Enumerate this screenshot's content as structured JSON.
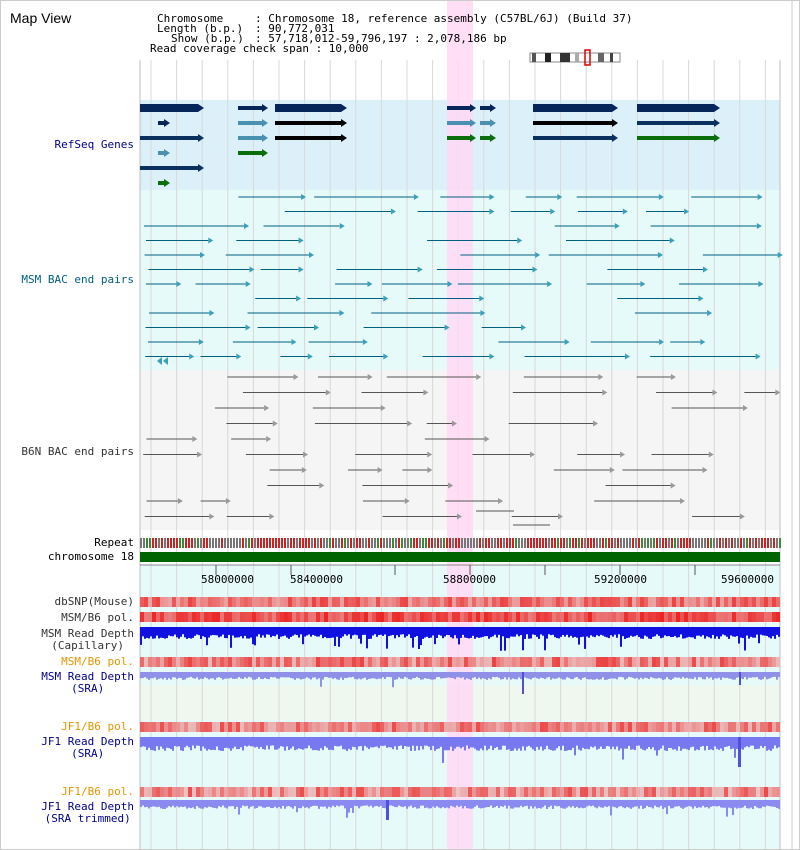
{
  "title": "Map View",
  "info": {
    "chromosome_key": "Chromosome",
    "chromosome_val": ": Chromosome 18, reference assembly (C57BL/6J) (Build 37)",
    "length_key": "Length (b.p.)",
    "length_val": ": 90,772,031",
    "show_key": "Show (b.p.)",
    "show_val": ": 57,718,012-59,796,197 : 2,078,186 bp",
    "read_coverage": "Read coverage check span : 10,000"
  },
  "tracks": {
    "refseq": "RefSeq Genes",
    "msm_bac": "MSM BAC end pairs",
    "b6n_bac": "B6N BAC end pairs",
    "repeat": "Repeat",
    "chromosome": "chromosome 18",
    "dbsnp": "dbSNP(Mouse)",
    "msm_b6_pol_1": "MSM/B6 pol.",
    "msm_read_depth_cap_1": "MSM Read Depth",
    "msm_read_depth_cap_2": "(Capillary)",
    "msm_b6_pol_2": "MSM/B6 pol.",
    "msm_read_depth_sra_1": "MSM Read Depth",
    "msm_read_depth_sra_2": "(SRA)",
    "jf1_b6_pol_1": "JF1/B6 pol.",
    "jf1_read_depth_sra_1": "JF1 Read Depth",
    "jf1_read_depth_sra_2": "(SRA)",
    "jf1_b6_pol_2": "JF1/B6 pol.",
    "jf1_read_depth_trim_1": "JF1 Read Depth",
    "jf1_read_depth_trim_2": "(SRA trimmed)"
  },
  "axis_ticks": [
    "58000000",
    "58400000",
    "58800000",
    "59200000",
    "59600000"
  ],
  "colors": {
    "navy": "#00008b",
    "orange": "#e69500",
    "dark": "#333333",
    "teal": "#006080",
    "highlight": "#ffd8f4",
    "refseq_bg": "#dcf0fa",
    "msm_bg": "#e6fafa",
    "b6n_bg": "#f5f5f5",
    "chromosome": "#006400"
  }
}
